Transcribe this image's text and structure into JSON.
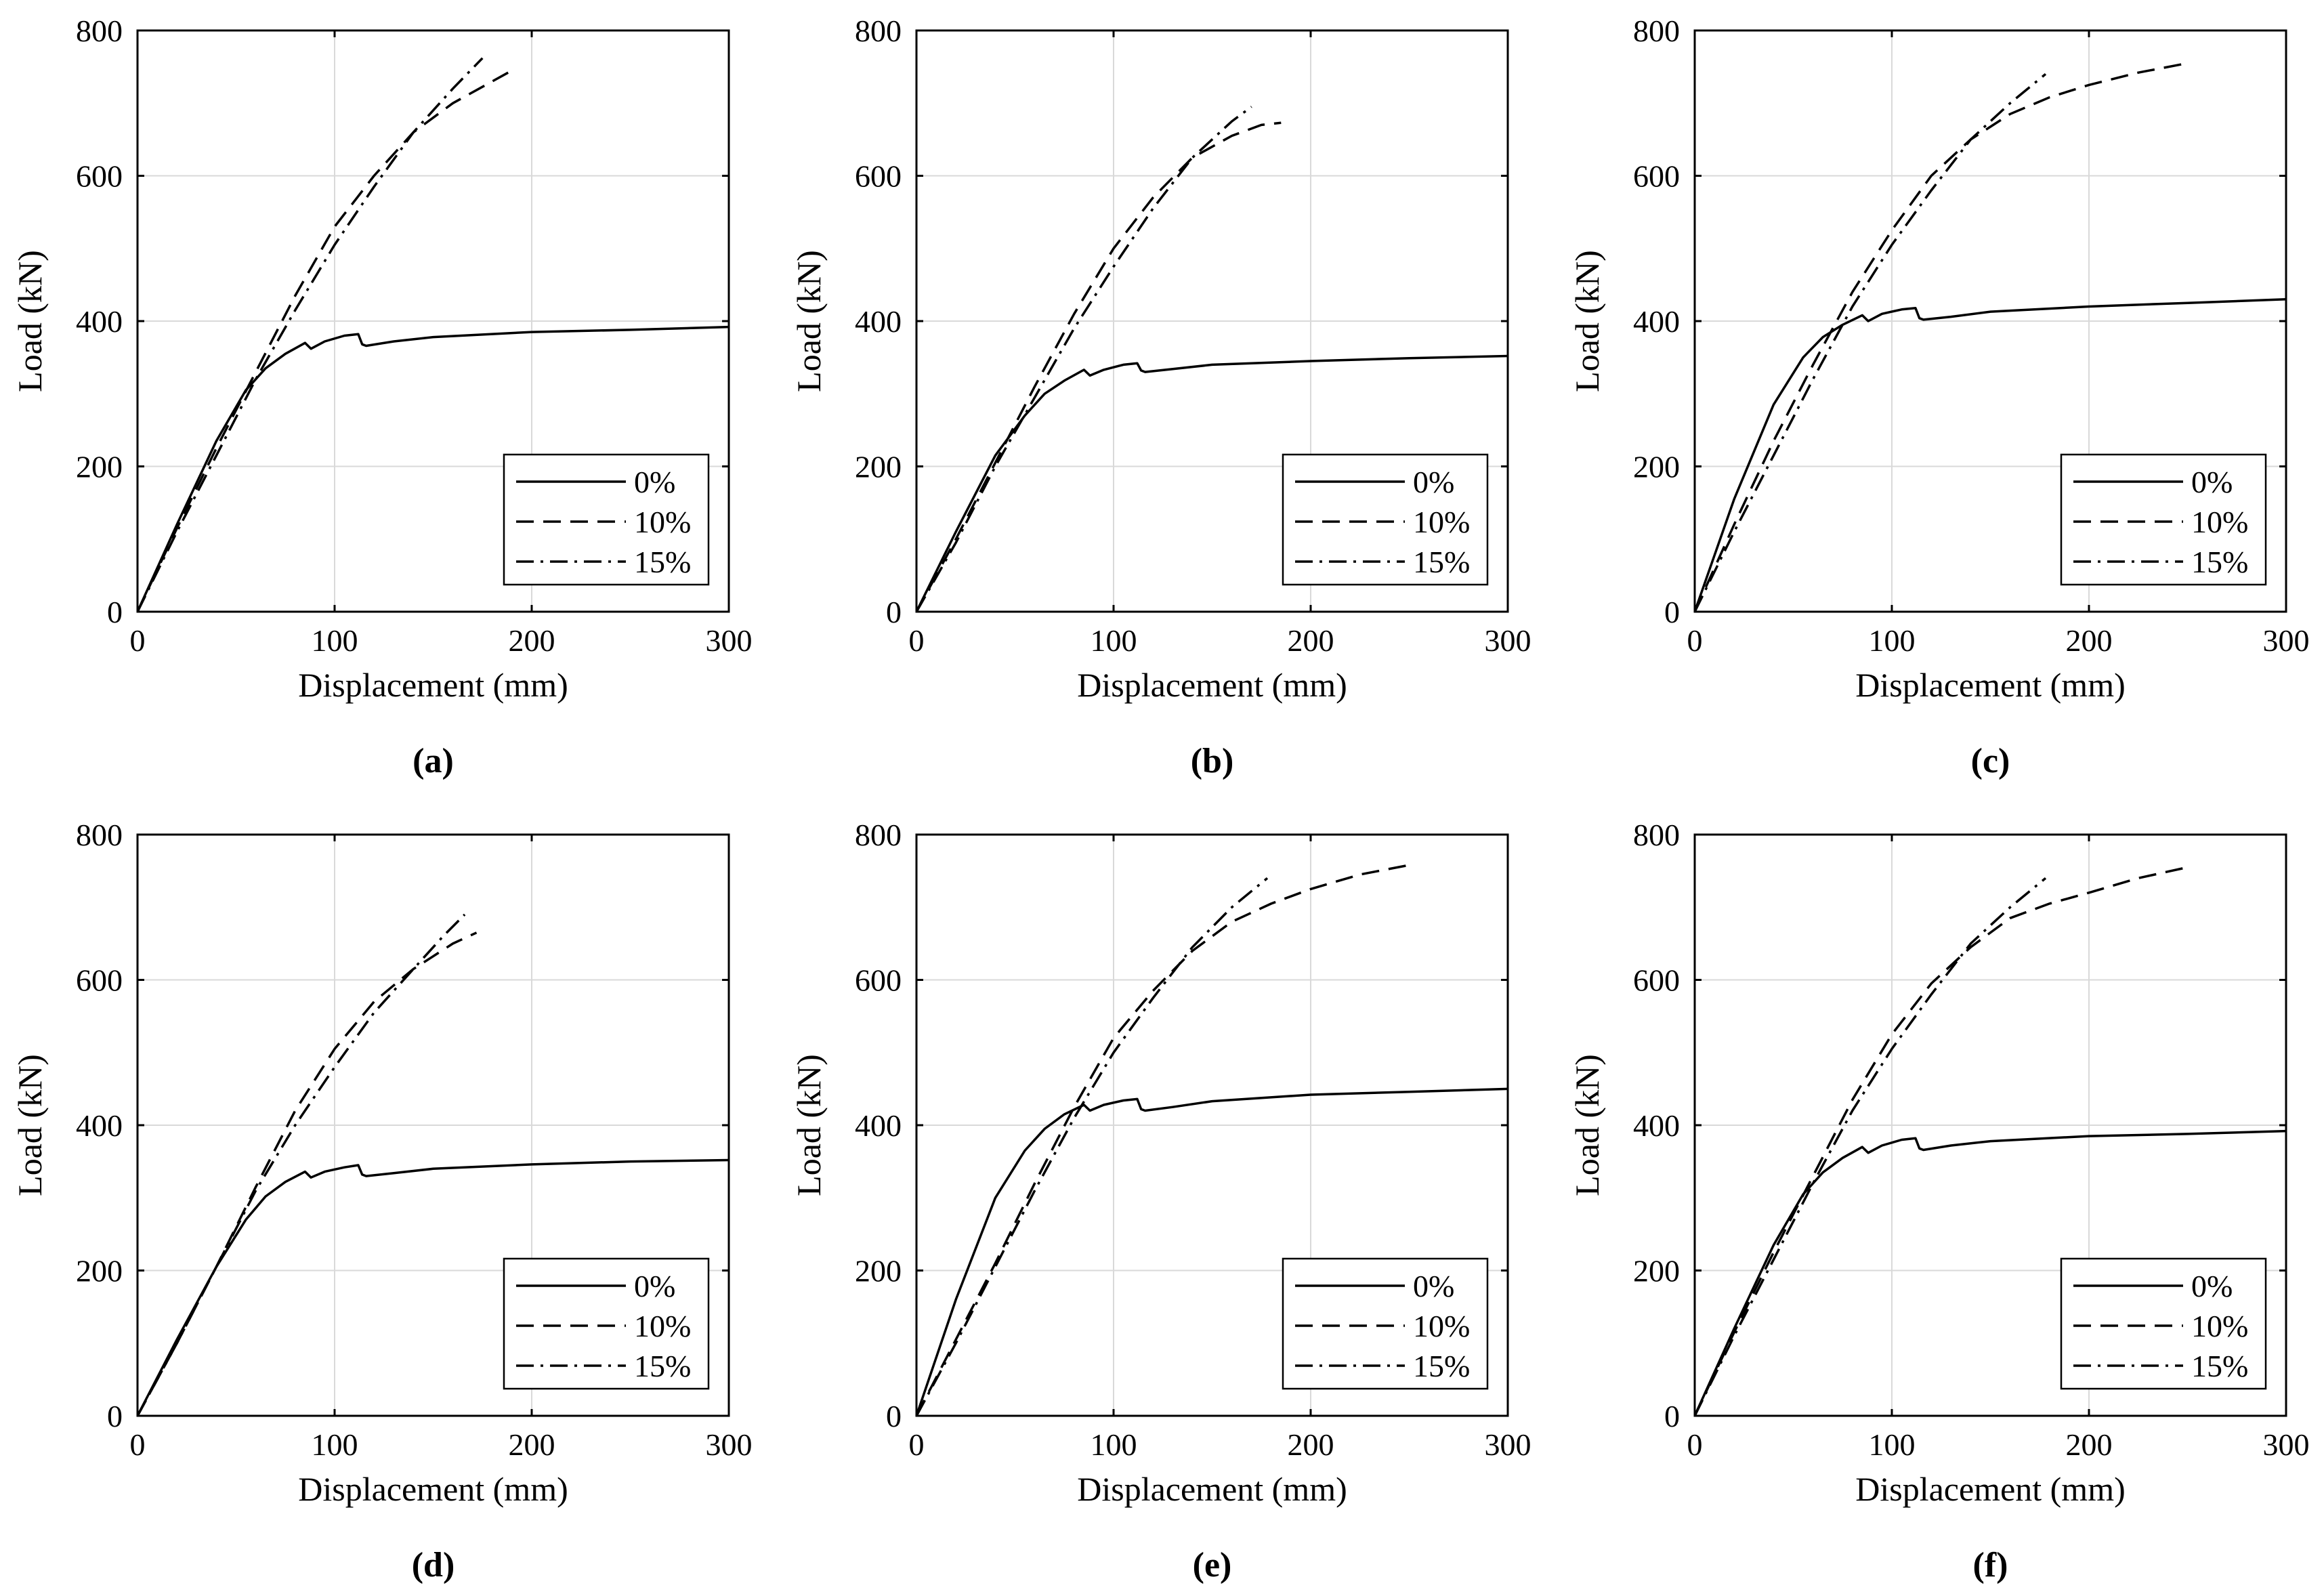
{
  "chart_data": [
    {
      "type": "line",
      "caption": "(a)",
      "xlabel": "Displacement (mm)",
      "ylabel": "Load (kN)",
      "xlim": [
        0,
        300
      ],
      "ylim": [
        0,
        800
      ],
      "xticks": [
        "0",
        "100",
        "200",
        "300"
      ],
      "yticks": [
        "0",
        "200",
        "400",
        "600",
        "800"
      ],
      "grid": true,
      "legend_position": "bottom-right",
      "series": [
        {
          "name": "0%",
          "style": "solid",
          "x": [
            0,
            20,
            40,
            55,
            65,
            75,
            85,
            88,
            95,
            105,
            112,
            114,
            116,
            130,
            150,
            200,
            250,
            300
          ],
          "y": [
            0,
            120,
            235,
            305,
            335,
            355,
            370,
            362,
            372,
            380,
            382,
            368,
            366,
            372,
            378,
            385,
            388,
            392
          ]
        },
        {
          "name": "10%",
          "style": "dashed",
          "x": [
            0,
            20,
            40,
            60,
            80,
            100,
            120,
            140,
            160,
            180,
            192
          ],
          "y": [
            0,
            115,
            225,
            330,
            435,
            530,
            600,
            660,
            700,
            730,
            748
          ]
        },
        {
          "name": "15%",
          "style": "dashdot",
          "x": [
            0,
            20,
            40,
            60,
            80,
            100,
            120,
            140,
            160,
            175
          ],
          "y": [
            0,
            110,
            215,
            320,
            415,
            505,
            585,
            660,
            720,
            762
          ]
        }
      ]
    },
    {
      "type": "line",
      "caption": "(b)",
      "xlabel": "Displacement (mm)",
      "ylabel": "Load (kN)",
      "xlim": [
        0,
        300
      ],
      "ylim": [
        0,
        800
      ],
      "xticks": [
        "0",
        "100",
        "200",
        "300"
      ],
      "yticks": [
        "0",
        "200",
        "400",
        "600",
        "800"
      ],
      "grid": true,
      "legend_position": "bottom-right",
      "series": [
        {
          "name": "0%",
          "style": "solid",
          "x": [
            0,
            20,
            40,
            55,
            65,
            75,
            85,
            88,
            95,
            105,
            112,
            114,
            116,
            130,
            150,
            200,
            250,
            300
          ],
          "y": [
            0,
            110,
            215,
            270,
            300,
            318,
            333,
            325,
            333,
            340,
            342,
            332,
            330,
            334,
            340,
            345,
            349,
            352
          ]
        },
        {
          "name": "10%",
          "style": "dashed",
          "x": [
            0,
            20,
            40,
            60,
            80,
            100,
            120,
            140,
            160,
            175,
            185
          ],
          "y": [
            0,
            100,
            205,
            310,
            410,
            500,
            570,
            625,
            655,
            670,
            673
          ]
        },
        {
          "name": "15%",
          "style": "dashdot",
          "x": [
            0,
            20,
            40,
            60,
            80,
            100,
            120,
            140,
            160,
            170
          ],
          "y": [
            0,
            95,
            200,
            295,
            390,
            475,
            555,
            625,
            675,
            695
          ]
        }
      ]
    },
    {
      "type": "line",
      "caption": "(c)",
      "xlabel": "Displacement (mm)",
      "ylabel": "Load (kN)",
      "xlim": [
        0,
        300
      ],
      "ylim": [
        0,
        800
      ],
      "xticks": [
        "0",
        "100",
        "200",
        "300"
      ],
      "yticks": [
        "0",
        "200",
        "400",
        "600",
        "800"
      ],
      "grid": true,
      "legend_position": "bottom-right",
      "series": [
        {
          "name": "0%",
          "style": "solid",
          "x": [
            0,
            20,
            40,
            55,
            65,
            75,
            85,
            88,
            95,
            105,
            112,
            114,
            116,
            130,
            150,
            200,
            250,
            300
          ],
          "y": [
            0,
            155,
            285,
            350,
            378,
            395,
            408,
            400,
            410,
            416,
            418,
            404,
            402,
            406,
            413,
            420,
            425,
            430
          ]
        },
        {
          "name": "10%",
          "style": "dashed",
          "x": [
            0,
            20,
            40,
            60,
            80,
            100,
            120,
            140,
            160,
            180,
            200,
            225,
            250
          ],
          "y": [
            0,
            120,
            235,
            340,
            440,
            525,
            600,
            650,
            685,
            708,
            725,
            742,
            755
          ]
        },
        {
          "name": "15%",
          "style": "dashdot",
          "x": [
            0,
            20,
            40,
            60,
            80,
            100,
            120,
            140,
            160,
            178
          ],
          "y": [
            0,
            110,
            215,
            320,
            420,
            505,
            580,
            650,
            700,
            740
          ]
        }
      ]
    },
    {
      "type": "line",
      "caption": "(d)",
      "xlabel": "Displacement (mm)",
      "ylabel": "Load (kN)",
      "xlim": [
        0,
        300
      ],
      "ylim": [
        0,
        800
      ],
      "xticks": [
        "0",
        "100",
        "200",
        "300"
      ],
      "yticks": [
        "0",
        "200",
        "400",
        "600",
        "800"
      ],
      "grid": true,
      "legend_position": "bottom-right",
      "series": [
        {
          "name": "0%",
          "style": "solid",
          "x": [
            0,
            20,
            40,
            55,
            65,
            75,
            85,
            88,
            95,
            105,
            112,
            114,
            116,
            130,
            150,
            200,
            250,
            300
          ],
          "y": [
            0,
            105,
            205,
            270,
            302,
            322,
            336,
            328,
            336,
            342,
            345,
            332,
            330,
            334,
            340,
            346,
            350,
            352
          ]
        },
        {
          "name": "10%",
          "style": "dashed",
          "x": [
            0,
            20,
            40,
            60,
            80,
            100,
            120,
            140,
            160,
            172
          ],
          "y": [
            0,
            100,
            205,
            315,
            420,
            505,
            570,
            615,
            650,
            665
          ]
        },
        {
          "name": "15%",
          "style": "dashdot",
          "x": [
            0,
            20,
            40,
            60,
            80,
            100,
            120,
            140,
            155,
            166
          ],
          "y": [
            0,
            100,
            205,
            310,
            400,
            480,
            555,
            615,
            660,
            690
          ]
        }
      ]
    },
    {
      "type": "line",
      "caption": "(e)",
      "xlabel": "Displacement (mm)",
      "ylabel": "Load (kN)",
      "xlim": [
        0,
        300
      ],
      "ylim": [
        0,
        800
      ],
      "xticks": [
        "0",
        "100",
        "200",
        "300"
      ],
      "yticks": [
        "0",
        "200",
        "400",
        "600",
        "800"
      ],
      "grid": true,
      "legend_position": "bottom-right",
      "series": [
        {
          "name": "0%",
          "style": "solid",
          "x": [
            0,
            20,
            40,
            55,
            65,
            75,
            85,
            88,
            95,
            105,
            112,
            114,
            116,
            130,
            150,
            200,
            250,
            300
          ],
          "y": [
            0,
            160,
            300,
            365,
            395,
            415,
            428,
            420,
            428,
            434,
            436,
            422,
            420,
            425,
            433,
            442,
            446,
            450
          ]
        },
        {
          "name": "10%",
          "style": "dashed",
          "x": [
            0,
            20,
            40,
            60,
            80,
            100,
            120,
            140,
            160,
            180,
            200,
            225,
            250
          ],
          "y": [
            0,
            105,
            210,
            320,
            425,
            520,
            585,
            640,
            680,
            705,
            725,
            745,
            758
          ]
        },
        {
          "name": "15%",
          "style": "dashdot",
          "x": [
            0,
            20,
            40,
            60,
            80,
            100,
            120,
            140,
            160,
            178
          ],
          "y": [
            0,
            100,
            205,
            310,
            410,
            500,
            575,
            645,
            700,
            740
          ]
        }
      ]
    },
    {
      "type": "line",
      "caption": "(f)",
      "xlabel": "Displacement (mm)",
      "ylabel": "Load (kN)",
      "xlim": [
        0,
        300
      ],
      "ylim": [
        0,
        800
      ],
      "xticks": [
        "0",
        "100",
        "200",
        "300"
      ],
      "yticks": [
        "0",
        "200",
        "400",
        "600",
        "800"
      ],
      "grid": true,
      "legend_position": "bottom-right",
      "series": [
        {
          "name": "0%",
          "style": "solid",
          "x": [
            0,
            20,
            40,
            55,
            65,
            75,
            85,
            88,
            95,
            105,
            112,
            114,
            116,
            130,
            150,
            200,
            250,
            300
          ],
          "y": [
            0,
            120,
            235,
            305,
            335,
            355,
            370,
            362,
            372,
            380,
            382,
            368,
            366,
            372,
            378,
            385,
            388,
            392
          ]
        },
        {
          "name": "10%",
          "style": "dashed",
          "x": [
            0,
            20,
            40,
            60,
            80,
            100,
            120,
            140,
            160,
            180,
            200,
            225,
            250
          ],
          "y": [
            0,
            115,
            225,
            330,
            435,
            525,
            595,
            645,
            685,
            705,
            720,
            740,
            755
          ]
        },
        {
          "name": "15%",
          "style": "dashdot",
          "x": [
            0,
            20,
            40,
            60,
            80,
            100,
            120,
            140,
            160,
            178
          ],
          "y": [
            0,
            110,
            215,
            320,
            420,
            505,
            580,
            650,
            700,
            740
          ]
        }
      ]
    }
  ]
}
